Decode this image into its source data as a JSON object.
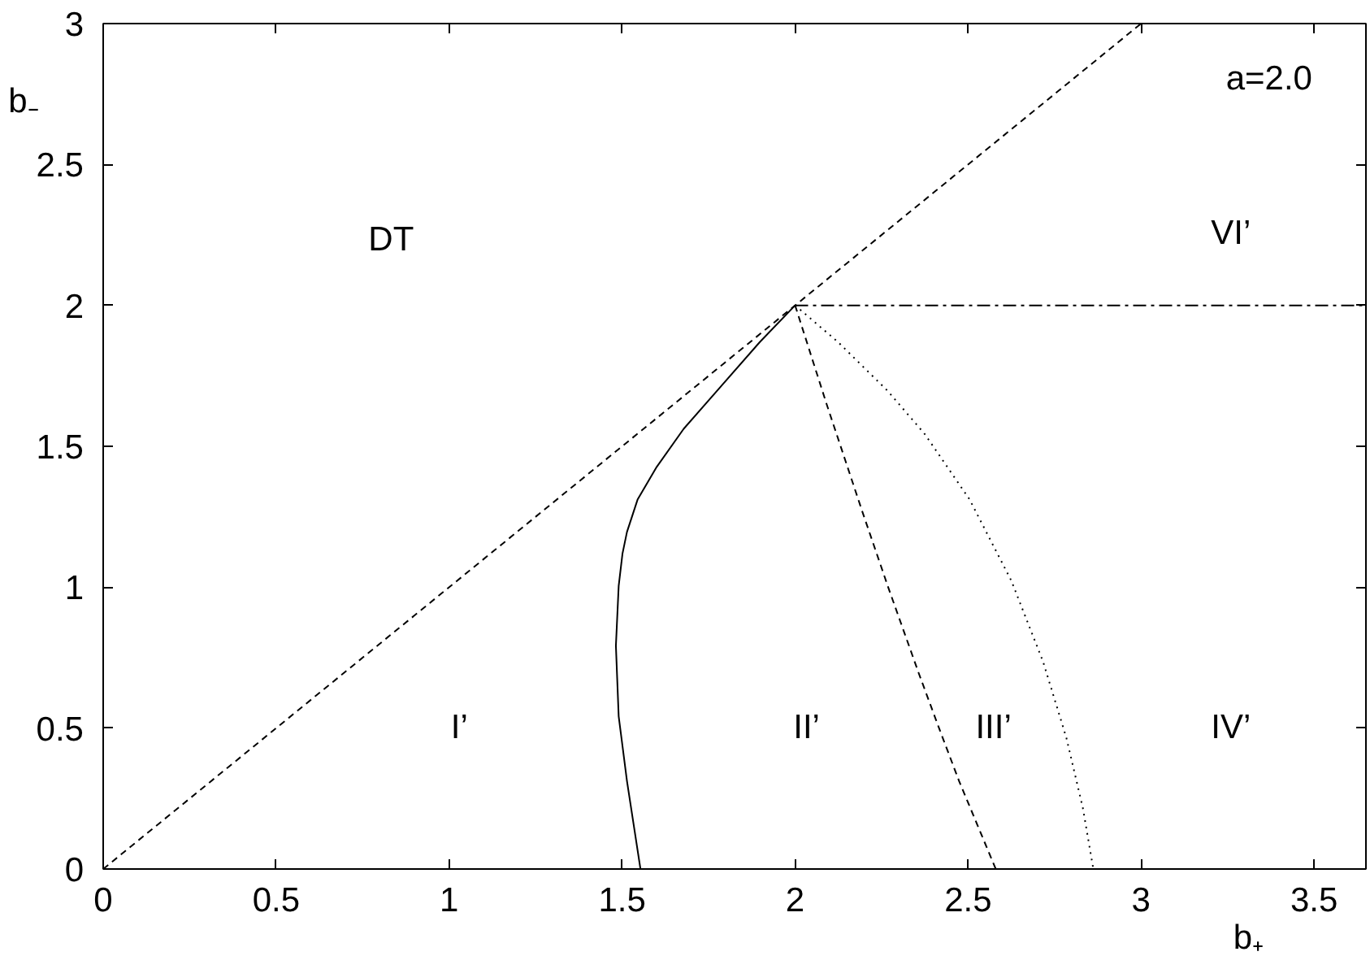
{
  "chart_data": {
    "type": "line",
    "xlabel": "b₊",
    "ylabel": "b₋",
    "xlim": [
      0,
      3.65
    ],
    "ylim": [
      0,
      3
    ],
    "xticks": [
      0,
      0.5,
      1,
      1.5,
      2,
      2.5,
      3,
      3.5
    ],
    "yticks": [
      0,
      0.5,
      1,
      1.5,
      2,
      2.5,
      3
    ],
    "grid": false,
    "series": [
      {
        "color": "#000000",
        "line_style": "dashed",
        "x": [
          0,
          3
        ],
        "values": [
          0,
          3
        ]
      },
      {
        "color": "#000000",
        "line_style": "solid",
        "x": [
          1.553,
          1.514,
          1.49,
          1.482,
          1.49,
          1.501,
          1.514,
          1.545,
          1.6,
          1.678,
          1.788,
          1.898,
          2
        ],
        "values": [
          0,
          0.312,
          0.542,
          0.792,
          1.004,
          1.119,
          1.196,
          1.312,
          1.427,
          1.562,
          1.716,
          1.87,
          2
        ]
      },
      {
        "color": "#000000",
        "line_style": "dashed",
        "x": [
          2,
          2.091,
          2.193,
          2.269,
          2.357,
          2.416,
          2.474,
          2.58
        ],
        "values": [
          2,
          1.65,
          1.273,
          1,
          0.696,
          0.5,
          0.312,
          0
        ]
      },
      {
        "color": "#000000",
        "line_style": "dotted",
        "x": [
          2,
          2.124,
          2.268,
          2.375,
          2.504,
          2.625,
          2.717,
          2.784,
          2.832,
          2.862
        ],
        "values": [
          2,
          1.87,
          1.696,
          1.543,
          1.312,
          1.023,
          0.735,
          0.466,
          0.215,
          0
        ]
      },
      {
        "color": "#000000",
        "line_style": "dashdot",
        "x": [
          2,
          3.65
        ],
        "values": [
          2,
          2
        ]
      }
    ],
    "annotations": [
      "a=2.0",
      "DT",
      "VI’",
      "I’",
      "II’",
      "III’",
      "IV’"
    ]
  }
}
